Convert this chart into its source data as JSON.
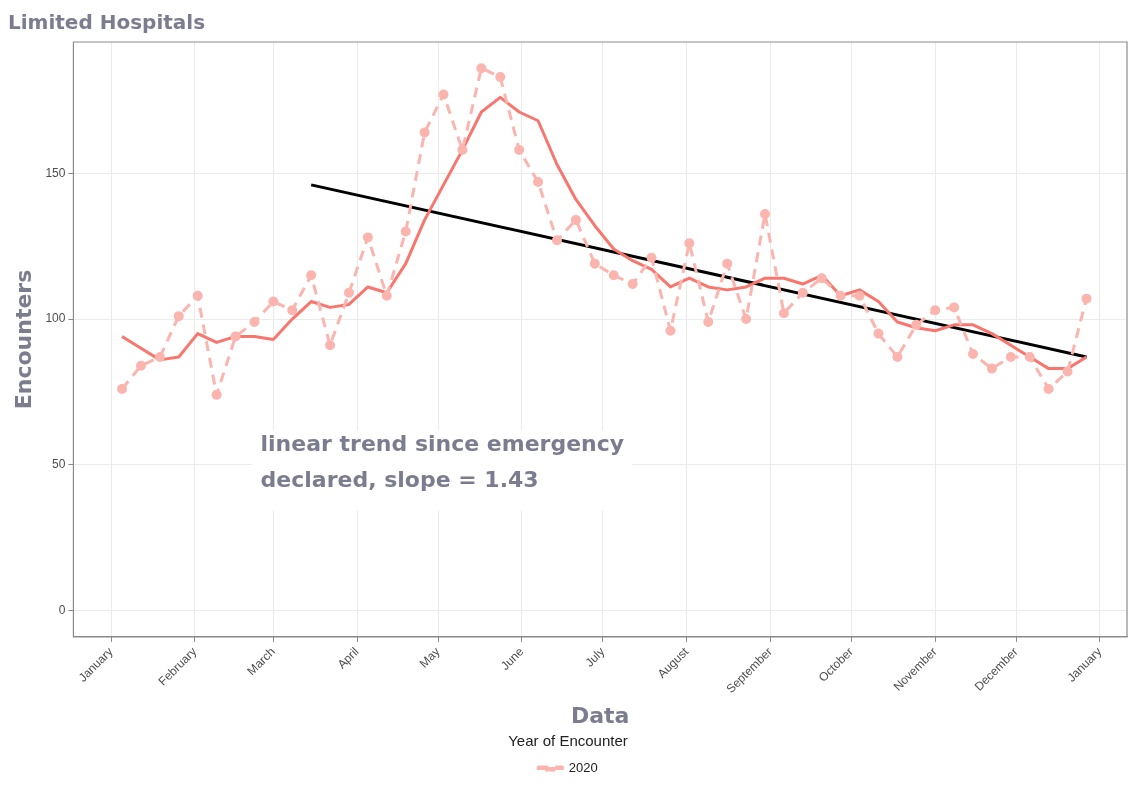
{
  "chart_data": {
    "type": "line",
    "title": "Limited Hospitals",
    "xlabel": "Data",
    "ylabel": "Encounters",
    "legend_title": "Year of Encounter",
    "x": [
      "2020-01-05",
      "2020-01-12",
      "2020-01-19",
      "2020-01-26",
      "2020-02-02",
      "2020-02-09",
      "2020-02-16",
      "2020-02-23",
      "2020-03-01",
      "2020-03-08",
      "2020-03-15",
      "2020-03-22",
      "2020-03-29",
      "2020-04-05",
      "2020-04-12",
      "2020-04-19",
      "2020-04-26",
      "2020-05-03",
      "2020-05-10",
      "2020-05-17",
      "2020-05-24",
      "2020-05-31",
      "2020-06-07",
      "2020-06-14",
      "2020-06-21",
      "2020-06-28",
      "2020-07-05",
      "2020-07-12",
      "2020-07-19",
      "2020-07-26",
      "2020-08-02",
      "2020-08-09",
      "2020-08-16",
      "2020-08-23",
      "2020-08-30",
      "2020-09-06",
      "2020-09-13",
      "2020-09-20",
      "2020-09-27",
      "2020-10-04",
      "2020-10-11",
      "2020-10-18",
      "2020-10-25",
      "2020-11-01",
      "2020-11-08",
      "2020-11-15",
      "2020-11-22",
      "2020-11-29",
      "2020-12-06",
      "2020-12-13",
      "2020-12-20",
      "2020-12-27"
    ],
    "series": [
      {
        "name": "2020",
        "color": "#fbb4ae",
        "marker": "circle",
        "line_style": "dashed",
        "values": [
          76,
          84,
          87,
          101,
          108,
          74,
          94,
          99,
          106,
          103,
          115,
          91,
          109,
          128,
          108,
          130,
          164,
          177,
          158,
          186,
          183,
          158,
          147,
          127,
          134,
          119,
          115,
          112,
          121,
          96,
          126,
          99,
          119,
          100,
          136,
          102,
          109,
          114,
          108,
          108,
          95,
          87,
          98,
          103,
          104,
          88,
          83,
          87,
          87,
          76,
          82,
          107
        ]
      },
      {
        "color": "#f8766d",
        "marker": "none",
        "line_style": "solid",
        "values": [
          94,
          90,
          86,
          87,
          95,
          92,
          94,
          94,
          93,
          100,
          106,
          104,
          105,
          111,
          109,
          119,
          134,
          146,
          158,
          171,
          176,
          171,
          168,
          153,
          141,
          132,
          124,
          120,
          117,
          111,
          114,
          111,
          110,
          111,
          114,
          114,
          112,
          115,
          108,
          110,
          106,
          99,
          97,
          96,
          98,
          98,
          95,
          91,
          87,
          83,
          83,
          87
        ]
      },
      {
        "color": "#000000",
        "marker": "none",
        "line_style": "solid",
        "x": [
          "2020-03-15",
          "2020-12-27"
        ],
        "values": [
          146,
          87
        ]
      }
    ],
    "xlim": [
      "2019-12-18",
      "2021-01-11"
    ],
    "xticks": [
      {
        "value": "2020-01-01",
        "label": "January"
      },
      {
        "value": "2020-02-01",
        "label": "February"
      },
      {
        "value": "2020-03-01",
        "label": "March"
      },
      {
        "value": "2020-04-01",
        "label": "April"
      },
      {
        "value": "2020-05-01",
        "label": "May"
      },
      {
        "value": "2020-06-01",
        "label": "June"
      },
      {
        "value": "2020-07-01",
        "label": "July"
      },
      {
        "value": "2020-08-01",
        "label": "August"
      },
      {
        "value": "2020-09-01",
        "label": "September"
      },
      {
        "value": "2020-10-01",
        "label": "October"
      },
      {
        "value": "2020-11-01",
        "label": "November"
      },
      {
        "value": "2020-12-01",
        "label": "December"
      },
      {
        "value": "2021-01-01",
        "label": "January"
      }
    ],
    "ylim": [
      -9,
      195
    ],
    "yticks": [
      0,
      50,
      100,
      150
    ],
    "grid": true,
    "legend": "bottom",
    "annotations": [
      "linear trend since emergency declared, slope = 1.43"
    ]
  }
}
